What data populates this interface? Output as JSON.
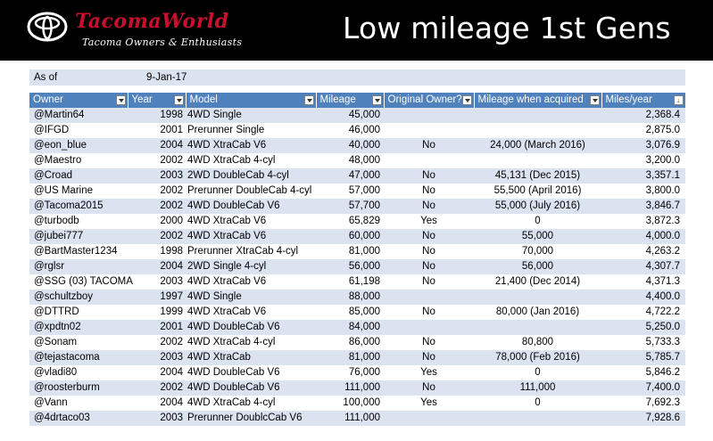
{
  "banner": {
    "brand": "TacomaWorld",
    "brand_sub": "Tacoma Owners & Enthusiasts",
    "title": "Low mileage 1st Gens"
  },
  "as_of": {
    "label": "As of",
    "date": "9-Jan-17"
  },
  "table": {
    "headers": [
      "Owner",
      "Year",
      "Model",
      "Mileage",
      "Original Owner?",
      "Mileage when acquired",
      "Miles/year"
    ],
    "rows": [
      [
        "@Martin64",
        "1998",
        "4WD Single",
        "45,000",
        "",
        "",
        "2,368.4"
      ],
      [
        "@IFGD",
        "2001",
        "Prerunner Single",
        "46,000",
        "",
        "",
        "2,875.0"
      ],
      [
        "@eon_blue",
        "2004",
        "4WD XtraCab V6",
        "40,000",
        "No",
        "24,000 (March 2016)",
        "3,076.9"
      ],
      [
        "@Maestro",
        "2002",
        "4WD XtraCab 4-cyl",
        "48,000",
        "",
        "",
        "3,200.0"
      ],
      [
        "@Croad",
        "2003",
        "2WD DoubleCab 4-cyl",
        "47,000",
        "No",
        "45,131 (Dec 2015)",
        "3,357.1"
      ],
      [
        "@US Marine",
        "2002",
        "Prerunner DoubleCab 4-cyl",
        "57,000",
        "No",
        "55,500 (April 2016)",
        "3,800.0"
      ],
      [
        "@Tacoma2015",
        "2002",
        "4WD DoubleCab V6",
        "57,700",
        "No",
        "55,000 (July 2016)",
        "3,846.7"
      ],
      [
        "@turbodb",
        "2000",
        "4WD XtraCab V6",
        "65,829",
        "Yes",
        "0",
        "3,872.3"
      ],
      [
        "@jubei777",
        "2002",
        "4WD XtraCab V6",
        "60,000",
        "No",
        "55,000",
        "4,000.0"
      ],
      [
        "@BartMaster1234",
        "1998",
        "Prerunner XtraCab 4-cyl",
        "81,000",
        "No",
        "70,000",
        "4,263.2"
      ],
      [
        "@rglsr",
        "2004",
        "2WD Single 4-cyl",
        "56,000",
        "No",
        "56,000",
        "4,307.7"
      ],
      [
        "@SSG (03) TACOMA",
        "2003",
        "4WD XtraCab V6",
        "61,198",
        "No",
        "21,400 (Dec 2014)",
        "4,371.3"
      ],
      [
        "@schultzboy",
        "1997",
        "4WD Single",
        "88,000",
        "",
        "",
        "4,400.0"
      ],
      [
        "@DTTRD",
        "1999",
        "4WD XtraCab V6",
        "85,000",
        "No",
        "80,000 (Jan 2016)",
        "4,722.2"
      ],
      [
        "@xpdtn02",
        "2001",
        "4WD DoubleCab V6",
        "84,000",
        "",
        "",
        "5,250.0"
      ],
      [
        "@Sonam",
        "2002",
        "4WD XtraCab 4-cyl",
        "86,000",
        "No",
        "80,800",
        "5,733.3"
      ],
      [
        "@tejastacoma",
        "2003",
        "4WD XtraCab",
        "81,000",
        "No",
        "78,000 (Feb 2016)",
        "5,785.7"
      ],
      [
        "@vladi80",
        "2004",
        "4WD DoubleCab V6",
        "76,000",
        "Yes",
        "0",
        "5,846.2"
      ],
      [
        "@roosterburm",
        "2002",
        "4WD DoubleCab V6",
        "111,000",
        "No",
        "111,000",
        "7,400.0"
      ],
      [
        "@Vann",
        "2004",
        "4WD XtraCab 4-cyl",
        "100,000",
        "Yes",
        "0",
        "7,692.3"
      ],
      [
        "@4drtaco03",
        "2003",
        "Prerunner DoublcCab V6",
        "111,000",
        "",
        "",
        "7,928.6"
      ]
    ]
  }
}
